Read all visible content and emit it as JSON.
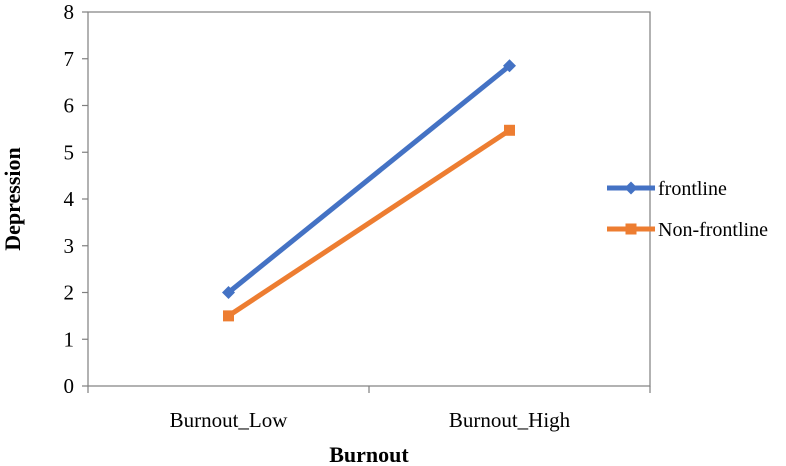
{
  "chart_data": {
    "type": "line",
    "categories": [
      "Burnout_Low",
      "Burnout_High"
    ],
    "series": [
      {
        "name": "frontline",
        "values": [
          2.0,
          6.85
        ],
        "color": "#4472C4",
        "marker": "diamond"
      },
      {
        "name": "Non-frontline",
        "values": [
          1.5,
          5.47
        ],
        "color": "#ED7D31",
        "marker": "square"
      }
    ],
    "xlabel": "Burnout",
    "ylabel": "Depression",
    "ylim": [
      0,
      8
    ],
    "yticks": [
      0,
      1,
      2,
      3,
      4,
      5,
      6,
      7,
      8
    ],
    "grid": false,
    "legend": "right"
  }
}
